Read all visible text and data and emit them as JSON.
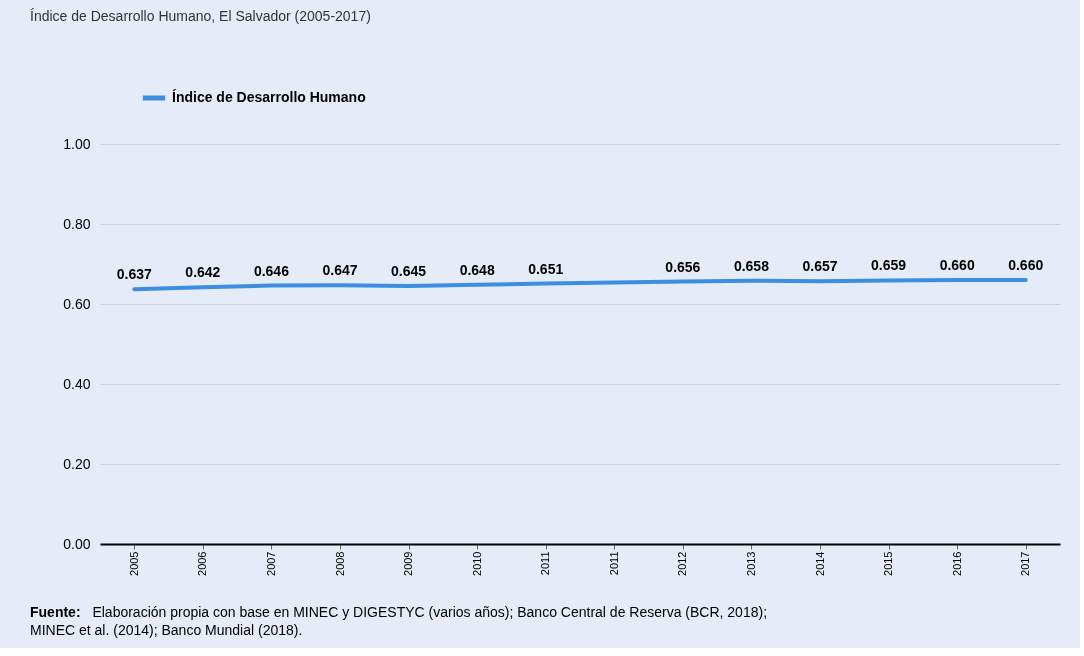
{
  "chart_data": {
    "type": "line",
    "title": "Índice de Desarrollo Humano, El Salvador (2005-2017)",
    "categories": [
      "2005",
      "2006",
      "2007",
      "2008",
      "2009",
      "2010",
      "2011",
      "2011",
      "2012",
      "2013",
      "2014",
      "2015",
      "2016",
      "2017"
    ],
    "series": [
      {
        "name": "Índice de Desarrollo Humano",
        "color": "#3b8ee0",
        "values": [
          0.637,
          0.642,
          0.646,
          0.647,
          0.645,
          0.648,
          0.651,
          null,
          0.656,
          0.658,
          0.657,
          0.659,
          0.66,
          0.66
        ],
        "value_labels": [
          "0.637",
          "0.642",
          "0.646",
          "0.647",
          "0.645",
          "0.648",
          "0.651",
          null,
          "0.656",
          "0.658",
          "0.657",
          "0.659",
          "0.660",
          "0.660"
        ]
      }
    ],
    "ylim": [
      0,
      1
    ],
    "yticks": [
      {
        "value": 0,
        "label": "0.00"
      },
      {
        "value": 0.2,
        "label": "0.20"
      },
      {
        "value": 0.4,
        "label": "0.40"
      },
      {
        "value": 0.6,
        "label": "0.60"
      },
      {
        "value": 0.8,
        "label": "0.80"
      },
      {
        "value": 1,
        "label": "1.00"
      }
    ],
    "grid": "y",
    "legend": "top left",
    "marker": "none",
    "line_style": "solid",
    "annotations": [
      "Fuente: Elaboración propia con base en  MINEC y DIGESTYC (varios años); Banco Central de Reserva (BCR, 2018); MINEC et al. (2014);  Banco Mundial (2018)."
    ]
  }
}
